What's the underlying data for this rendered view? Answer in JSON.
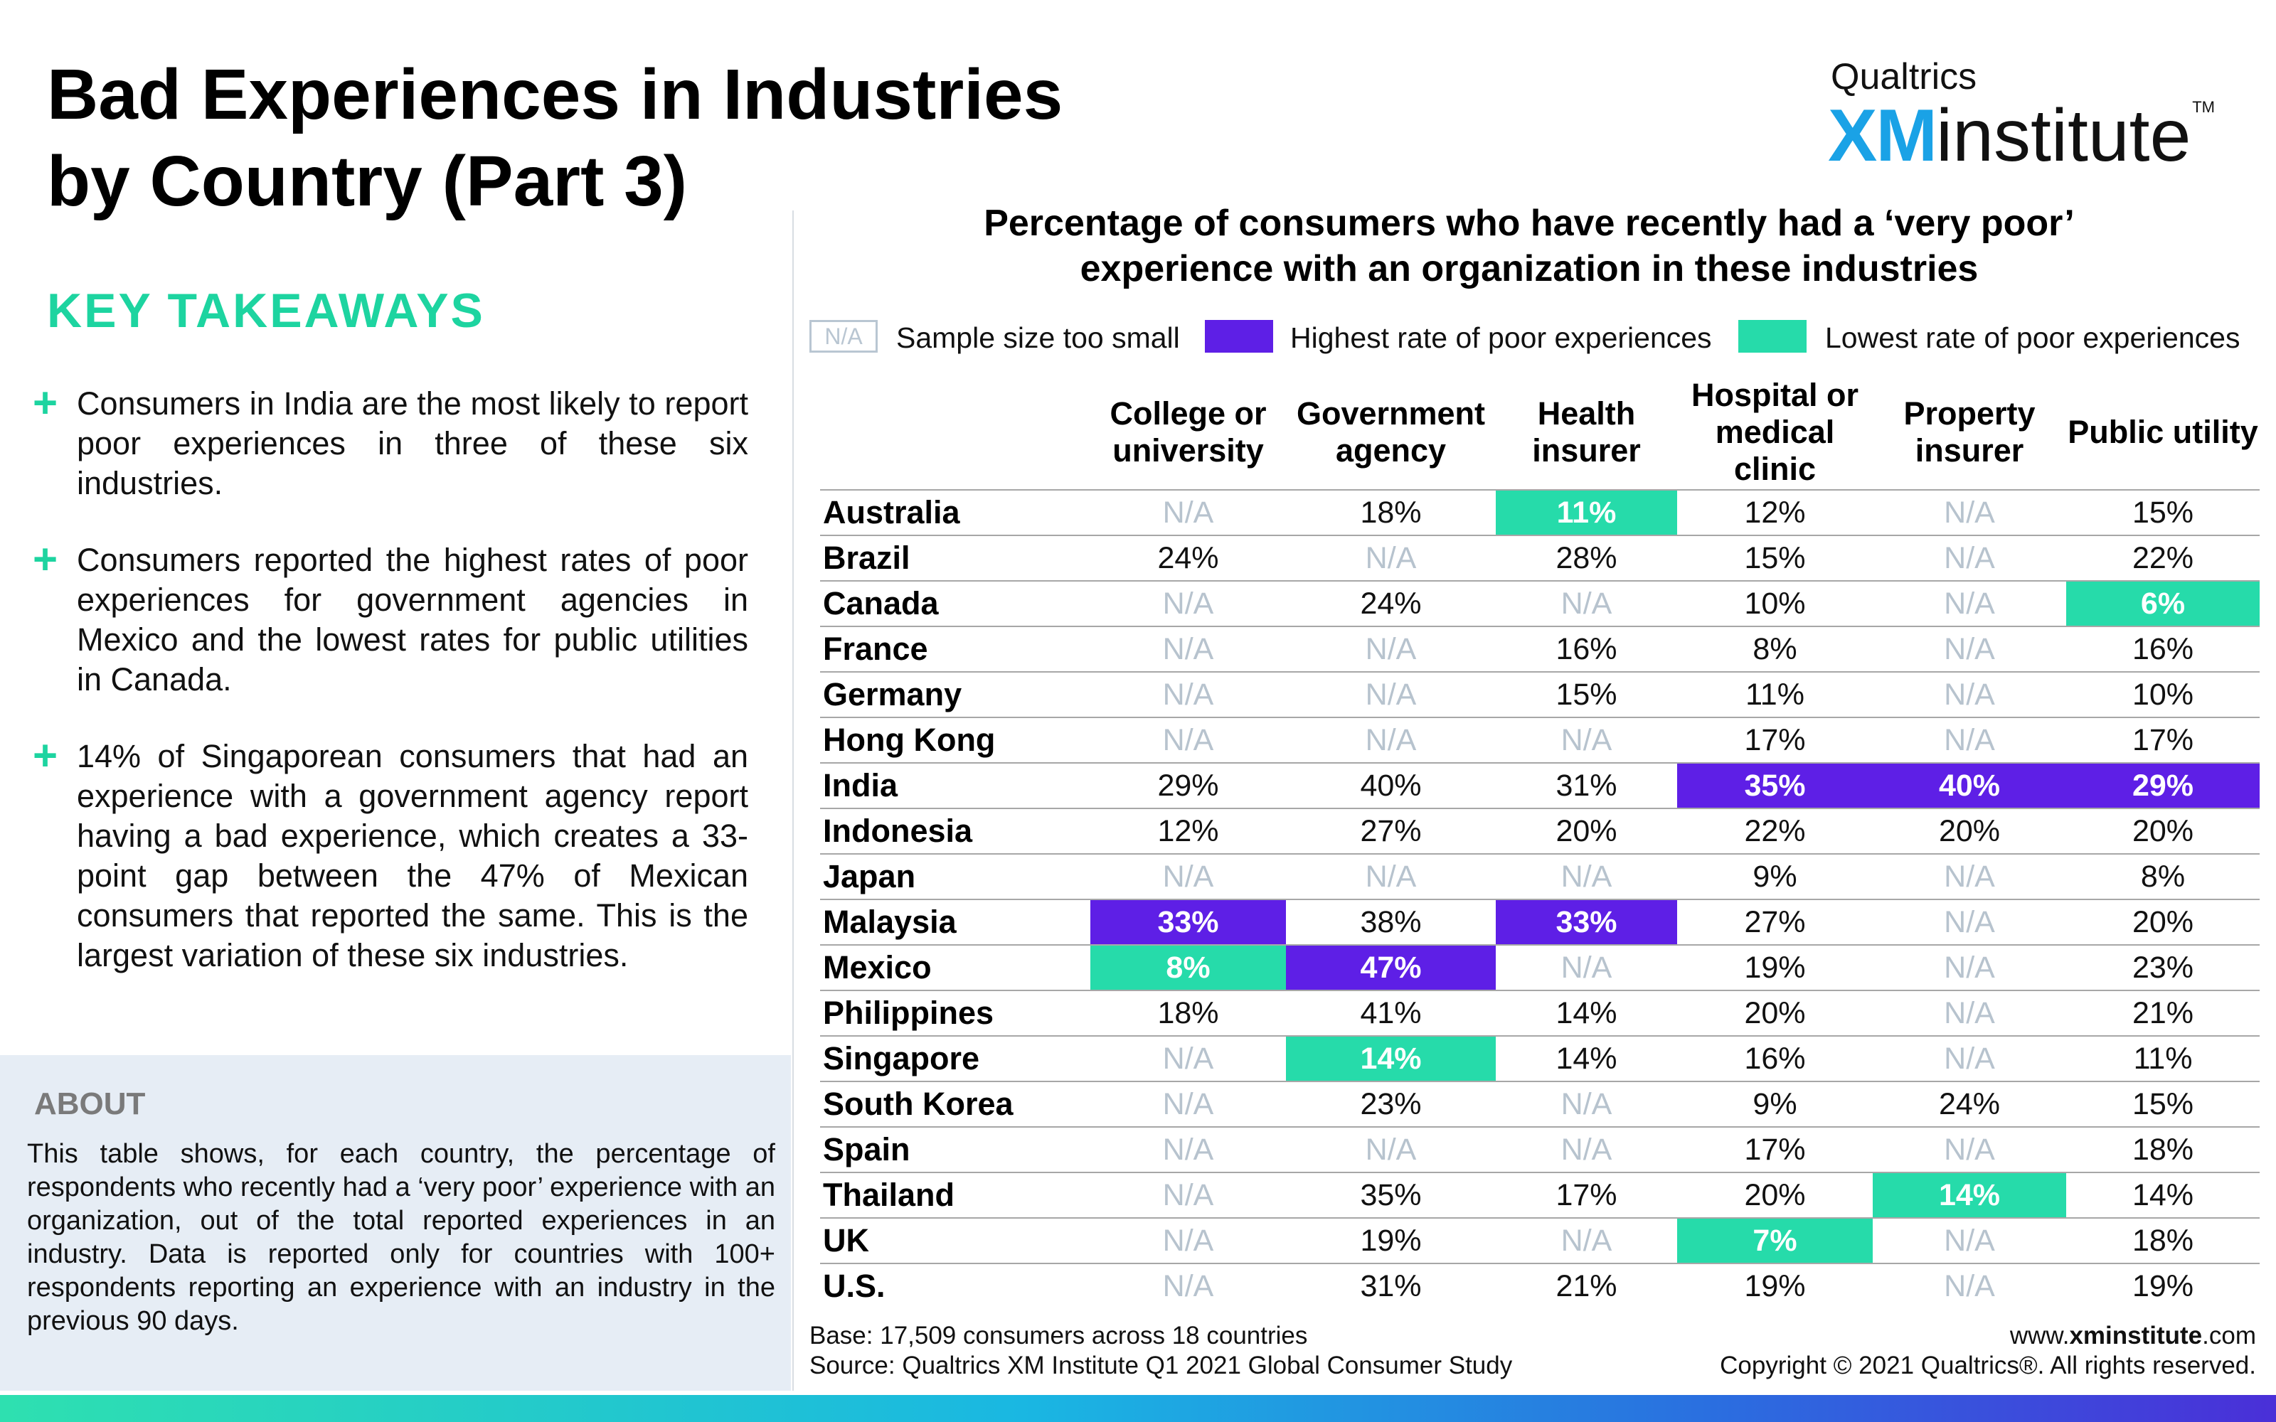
{
  "title_lines": [
    "Bad Experiences in Industries",
    "by Country (Part 3)"
  ],
  "logo": {
    "top": "Qualtrics",
    "xm": "XM",
    "institute": "institute",
    "tm": "TM"
  },
  "key_takeaways": {
    "heading": "KEY TAKEAWAYS",
    "items": [
      "Consumers in India are the most likely to report poor experiences in three of these six industries.",
      "Consumers reported the highest rates of poor experiences for government agencies in Mexico and the lowest rates for public utilities in Canada.",
      "14% of Singaporean consumers that had an experience with a government agency report having a bad experience, which creates a 33-point gap between the 47% of Mexican consumers that reported the same. This is the largest variation of these six industries."
    ]
  },
  "about": {
    "heading": "ABOUT",
    "text": "This table shows, for each country, the percentage of respondents who recently had a ‘very poor’ experience with an organization, out of the total reported experiences in an industry. Data is reported only for countries with 100+ respondents reporting an experience with an industry in the previous 90 days."
  },
  "colors": {
    "highest": "#5e1fe6",
    "lowest": "#26dbaa",
    "na": "#b7c3ce",
    "accent": "#1dd4a0"
  },
  "chart_data": {
    "type": "table",
    "title": "Percentage of consumers who have recently had a ‘very poor’ experience with an organization in these industries",
    "title_lines": [
      "Percentage of consumers who have recently had a ‘very poor’",
      "experience with an organization in these industries"
    ],
    "legend": {
      "na_box": "N/A",
      "na": "Sample size too small",
      "highest": "Highest rate of poor experiences",
      "lowest": "Lowest rate of poor experiences"
    },
    "columns": [
      "College or university",
      "Government agency",
      "Health insurer",
      "Hospital or medical clinic",
      "Property insurer",
      "Public utility"
    ],
    "rows": [
      {
        "country": "Australia",
        "values": [
          "N/A",
          "18%",
          "11%",
          "12%",
          "N/A",
          "15%"
        ],
        "flags": [
          "",
          "",
          "lo",
          "",
          "",
          ""
        ]
      },
      {
        "country": "Brazil",
        "values": [
          "24%",
          "N/A",
          "28%",
          "15%",
          "N/A",
          "22%"
        ],
        "flags": [
          "",
          "",
          "",
          "",
          "",
          ""
        ]
      },
      {
        "country": "Canada",
        "values": [
          "N/A",
          "24%",
          "N/A",
          "10%",
          "N/A",
          "6%"
        ],
        "flags": [
          "",
          "",
          "",
          "",
          "",
          "lo"
        ]
      },
      {
        "country": "France",
        "values": [
          "N/A",
          "N/A",
          "16%",
          "8%",
          "N/A",
          "16%"
        ],
        "flags": [
          "",
          "",
          "",
          "",
          "",
          ""
        ]
      },
      {
        "country": "Germany",
        "values": [
          "N/A",
          "N/A",
          "15%",
          "11%",
          "N/A",
          "10%"
        ],
        "flags": [
          "",
          "",
          "",
          "",
          "",
          ""
        ]
      },
      {
        "country": "Hong Kong",
        "values": [
          "N/A",
          "N/A",
          "N/A",
          "17%",
          "N/A",
          "17%"
        ],
        "flags": [
          "",
          "",
          "",
          "",
          "",
          ""
        ]
      },
      {
        "country": "India",
        "values": [
          "29%",
          "40%",
          "31%",
          "35%",
          "40%",
          "29%"
        ],
        "flags": [
          "",
          "",
          "",
          "hi",
          "hi",
          "hi"
        ]
      },
      {
        "country": "Indonesia",
        "values": [
          "12%",
          "27%",
          "20%",
          "22%",
          "20%",
          "20%"
        ],
        "flags": [
          "",
          "",
          "",
          "",
          "",
          ""
        ]
      },
      {
        "country": "Japan",
        "values": [
          "N/A",
          "N/A",
          "N/A",
          "9%",
          "N/A",
          "8%"
        ],
        "flags": [
          "",
          "",
          "",
          "",
          "",
          ""
        ]
      },
      {
        "country": "Malaysia",
        "values": [
          "33%",
          "38%",
          "33%",
          "27%",
          "N/A",
          "20%"
        ],
        "flags": [
          "hi",
          "",
          "hi",
          "",
          "",
          ""
        ]
      },
      {
        "country": "Mexico",
        "values": [
          "8%",
          "47%",
          "N/A",
          "19%",
          "N/A",
          "23%"
        ],
        "flags": [
          "lo",
          "hi",
          "",
          "",
          "",
          ""
        ]
      },
      {
        "country": "Philippines",
        "values": [
          "18%",
          "41%",
          "14%",
          "20%",
          "N/A",
          "21%"
        ],
        "flags": [
          "",
          "",
          "",
          "",
          "",
          ""
        ]
      },
      {
        "country": "Singapore",
        "values": [
          "N/A",
          "14%",
          "14%",
          "16%",
          "N/A",
          "11%"
        ],
        "flags": [
          "",
          "lo",
          "",
          "",
          "",
          ""
        ]
      },
      {
        "country": "South Korea",
        "values": [
          "N/A",
          "23%",
          "N/A",
          "9%",
          "24%",
          "15%"
        ],
        "flags": [
          "",
          "",
          "",
          "",
          "",
          ""
        ]
      },
      {
        "country": "Spain",
        "values": [
          "N/A",
          "N/A",
          "N/A",
          "17%",
          "N/A",
          "18%"
        ],
        "flags": [
          "",
          "",
          "",
          "",
          "",
          ""
        ]
      },
      {
        "country": "Thailand",
        "values": [
          "N/A",
          "35%",
          "17%",
          "20%",
          "14%",
          "14%"
        ],
        "flags": [
          "",
          "",
          "",
          "",
          "lo",
          ""
        ]
      },
      {
        "country": "UK",
        "values": [
          "N/A",
          "19%",
          "N/A",
          "7%",
          "N/A",
          "18%"
        ],
        "flags": [
          "",
          "",
          "",
          "lo",
          "",
          ""
        ]
      },
      {
        "country": "U.S.",
        "values": [
          "N/A",
          "31%",
          "21%",
          "19%",
          "N/A",
          "19%"
        ],
        "flags": [
          "",
          "",
          "",
          "",
          "",
          ""
        ]
      }
    ]
  },
  "footer": {
    "base": "Base: 17,509 consumers across 18 countries",
    "source": "Source: Qualtrics XM Institute Q1 2021 Global Consumer Study",
    "url_prefix": "www.",
    "url_bold": "xminstitute",
    "url_suffix": ".com",
    "copyright": "Copyright © 2021 Qualtrics®. All rights reserved."
  }
}
